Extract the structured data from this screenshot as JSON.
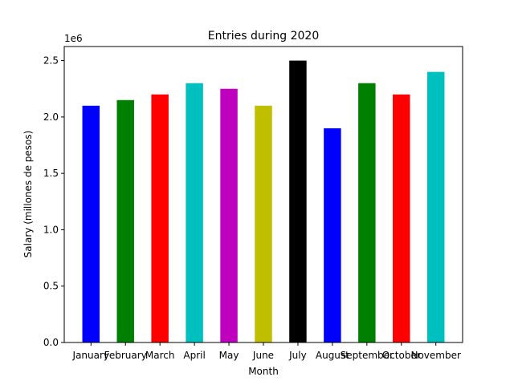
{
  "chart_data": {
    "type": "bar",
    "title": "Entries during 2020",
    "xlabel": "Month",
    "ylabel": "Salary (millones de pesos)",
    "offset_label": "1e6",
    "categories": [
      "January",
      "February",
      "March",
      "April",
      "May",
      "June",
      "July",
      "August",
      "September",
      "October",
      "November"
    ],
    "values": [
      2100000,
      2150000,
      2200000,
      2300000,
      2250000,
      2100000,
      2500000,
      1900000,
      2300000,
      2200000,
      2400000
    ],
    "colors": [
      "#0000ff",
      "#008000",
      "#ff0000",
      "#00bfbf",
      "#bf00bf",
      "#bfbf00",
      "#000000",
      "#0000ff",
      "#008000",
      "#ff0000",
      "#00bfbf"
    ],
    "ylim": [
      0,
      2625000
    ],
    "yticks": [
      0,
      500000,
      1000000,
      1500000,
      2000000,
      2500000
    ],
    "ytick_labels": [
      "0.0",
      "0.5",
      "1.0",
      "1.5",
      "2.0",
      "2.5"
    ],
    "grid": false,
    "legend": "none"
  }
}
